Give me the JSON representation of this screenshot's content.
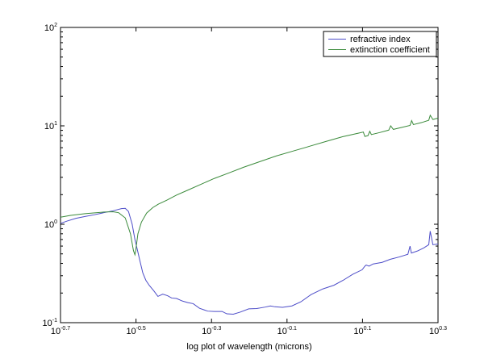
{
  "chart_data": {
    "type": "line",
    "xlabel": "log plot of wavelength (microns)",
    "ylabel": "",
    "x_scale": "log",
    "y_scale": "log",
    "xlim": [
      0.1995,
      1.9953
    ],
    "ylim": [
      0.1,
      100
    ],
    "x_ticks": [
      {
        "value": 0.1995,
        "base": "10",
        "exp": "-0.7"
      },
      {
        "value": 0.3162,
        "base": "10",
        "exp": "-0.5"
      },
      {
        "value": 0.5012,
        "base": "10",
        "exp": "-0.3"
      },
      {
        "value": 0.7943,
        "base": "10",
        "exp": "-0.1"
      },
      {
        "value": 1.2589,
        "base": "10",
        "exp": "0.1"
      },
      {
        "value": 1.9953,
        "base": "10",
        "exp": "0.3"
      }
    ],
    "y_ticks": [
      {
        "value": 0.1,
        "base": "10",
        "exp": "-1"
      },
      {
        "value": 1,
        "base": "10",
        "exp": "0"
      },
      {
        "value": 10,
        "base": "10",
        "exp": "1"
      },
      {
        "value": 100,
        "base": "10",
        "exp": "2"
      }
    ],
    "legend_position": "top-right",
    "series": [
      {
        "name": "refractive index",
        "color": "#4c4cc8",
        "points": [
          [
            0.1995,
            1.02
          ],
          [
            0.208,
            1.08
          ],
          [
            0.2193,
            1.15
          ],
          [
            0.2317,
            1.2
          ],
          [
            0.2455,
            1.25
          ],
          [
            0.2597,
            1.31
          ],
          [
            0.2749,
            1.37
          ],
          [
            0.2893,
            1.44
          ],
          [
            0.2961,
            1.45
          ],
          [
            0.302,
            1.35
          ],
          [
            0.3089,
            1.0
          ],
          [
            0.3141,
            0.7
          ],
          [
            0.3185,
            0.56
          ],
          [
            0.3236,
            0.43
          ],
          [
            0.3296,
            0.32
          ],
          [
            0.3357,
            0.27
          ],
          [
            0.3426,
            0.24
          ],
          [
            0.3527,
            0.21
          ],
          [
            0.3614,
            0.185
          ],
          [
            0.3722,
            0.195
          ],
          [
            0.3833,
            0.188
          ],
          [
            0.393,
            0.178
          ],
          [
            0.4049,
            0.176
          ],
          [
            0.4194,
            0.166
          ],
          [
            0.4335,
            0.16
          ],
          [
            0.4481,
            0.156
          ],
          [
            0.4659,
            0.14
          ],
          [
            0.4897,
            0.131
          ],
          [
            0.5096,
            0.13
          ],
          [
            0.5346,
            0.13
          ],
          [
            0.5502,
            0.123
          ],
          [
            0.5724,
            0.122
          ],
          [
            0.5968,
            0.128
          ],
          [
            0.6288,
            0.138
          ],
          [
            0.6601,
            0.139
          ],
          [
            0.695,
            0.144
          ],
          [
            0.7178,
            0.148
          ],
          [
            0.738,
            0.145
          ],
          [
            0.7727,
            0.143
          ],
          [
            0.8185,
            0.148
          ],
          [
            0.8646,
            0.163
          ],
          [
            0.9198,
            0.193
          ],
          [
            0.9874,
            0.22
          ],
          [
            1.0572,
            0.24
          ],
          [
            1.1194,
            0.27
          ],
          [
            1.1858,
            0.31
          ],
          [
            1.2562,
            0.345
          ],
          [
            1.2769,
            0.375
          ],
          [
            1.2874,
            0.385
          ],
          [
            1.3101,
            0.375
          ],
          [
            1.3431,
            0.395
          ],
          [
            1.4191,
            0.41
          ],
          [
            1.4894,
            0.44
          ],
          [
            1.5744,
            0.465
          ],
          [
            1.6601,
            0.495
          ],
          [
            1.6822,
            0.6
          ],
          [
            1.696,
            0.51
          ],
          [
            1.7596,
            0.535
          ],
          [
            1.8298,
            0.575
          ],
          [
            1.8857,
            0.62
          ],
          [
            1.9026,
            0.85
          ],
          [
            1.934,
            0.62
          ],
          [
            1.9953,
            0.63
          ]
        ]
      },
      {
        "name": "extinction coefficient",
        "color": "#3a8a3a",
        "points": [
          [
            0.1995,
            1.18
          ],
          [
            0.2122,
            1.23
          ],
          [
            0.2317,
            1.28
          ],
          [
            0.2597,
            1.33
          ],
          [
            0.2749,
            1.34
          ],
          [
            0.2844,
            1.31
          ],
          [
            0.2961,
            1.16
          ],
          [
            0.3057,
            0.8
          ],
          [
            0.3113,
            0.54
          ],
          [
            0.3141,
            0.49
          ],
          [
            0.3158,
            0.55
          ],
          [
            0.3199,
            0.8
          ],
          [
            0.3268,
            1.05
          ],
          [
            0.3374,
            1.3
          ],
          [
            0.3505,
            1.48
          ],
          [
            0.3624,
            1.6
          ],
          [
            0.381,
            1.75
          ],
          [
            0.4049,
            1.98
          ],
          [
            0.4335,
            2.22
          ],
          [
            0.4701,
            2.55
          ],
          [
            0.5096,
            2.92
          ],
          [
            0.5569,
            3.32
          ],
          [
            0.6102,
            3.8
          ],
          [
            0.6752,
            4.35
          ],
          [
            0.7448,
            4.95
          ],
          [
            0.8254,
            5.55
          ],
          [
            0.9113,
            6.2
          ],
          [
            1.009,
            6.95
          ],
          [
            1.1142,
            7.75
          ],
          [
            1.2335,
            8.45
          ],
          [
            1.2653,
            8.65
          ],
          [
            1.2769,
            7.8
          ],
          [
            1.3014,
            7.95
          ],
          [
            1.3159,
            8.8
          ],
          [
            1.3289,
            8.15
          ],
          [
            1.398,
            8.55
          ],
          [
            1.4774,
            9.05
          ],
          [
            1.4949,
            10.0
          ],
          [
            1.5192,
            9.2
          ],
          [
            1.6014,
            9.65
          ],
          [
            1.6822,
            10.1
          ],
          [
            1.6988,
            11.3
          ],
          [
            1.7173,
            10.3
          ],
          [
            1.8057,
            10.8
          ],
          [
            1.8857,
            11.4
          ],
          [
            1.9029,
            12.8
          ],
          [
            1.934,
            11.6
          ],
          [
            1.9953,
            12.0
          ]
        ]
      }
    ]
  }
}
